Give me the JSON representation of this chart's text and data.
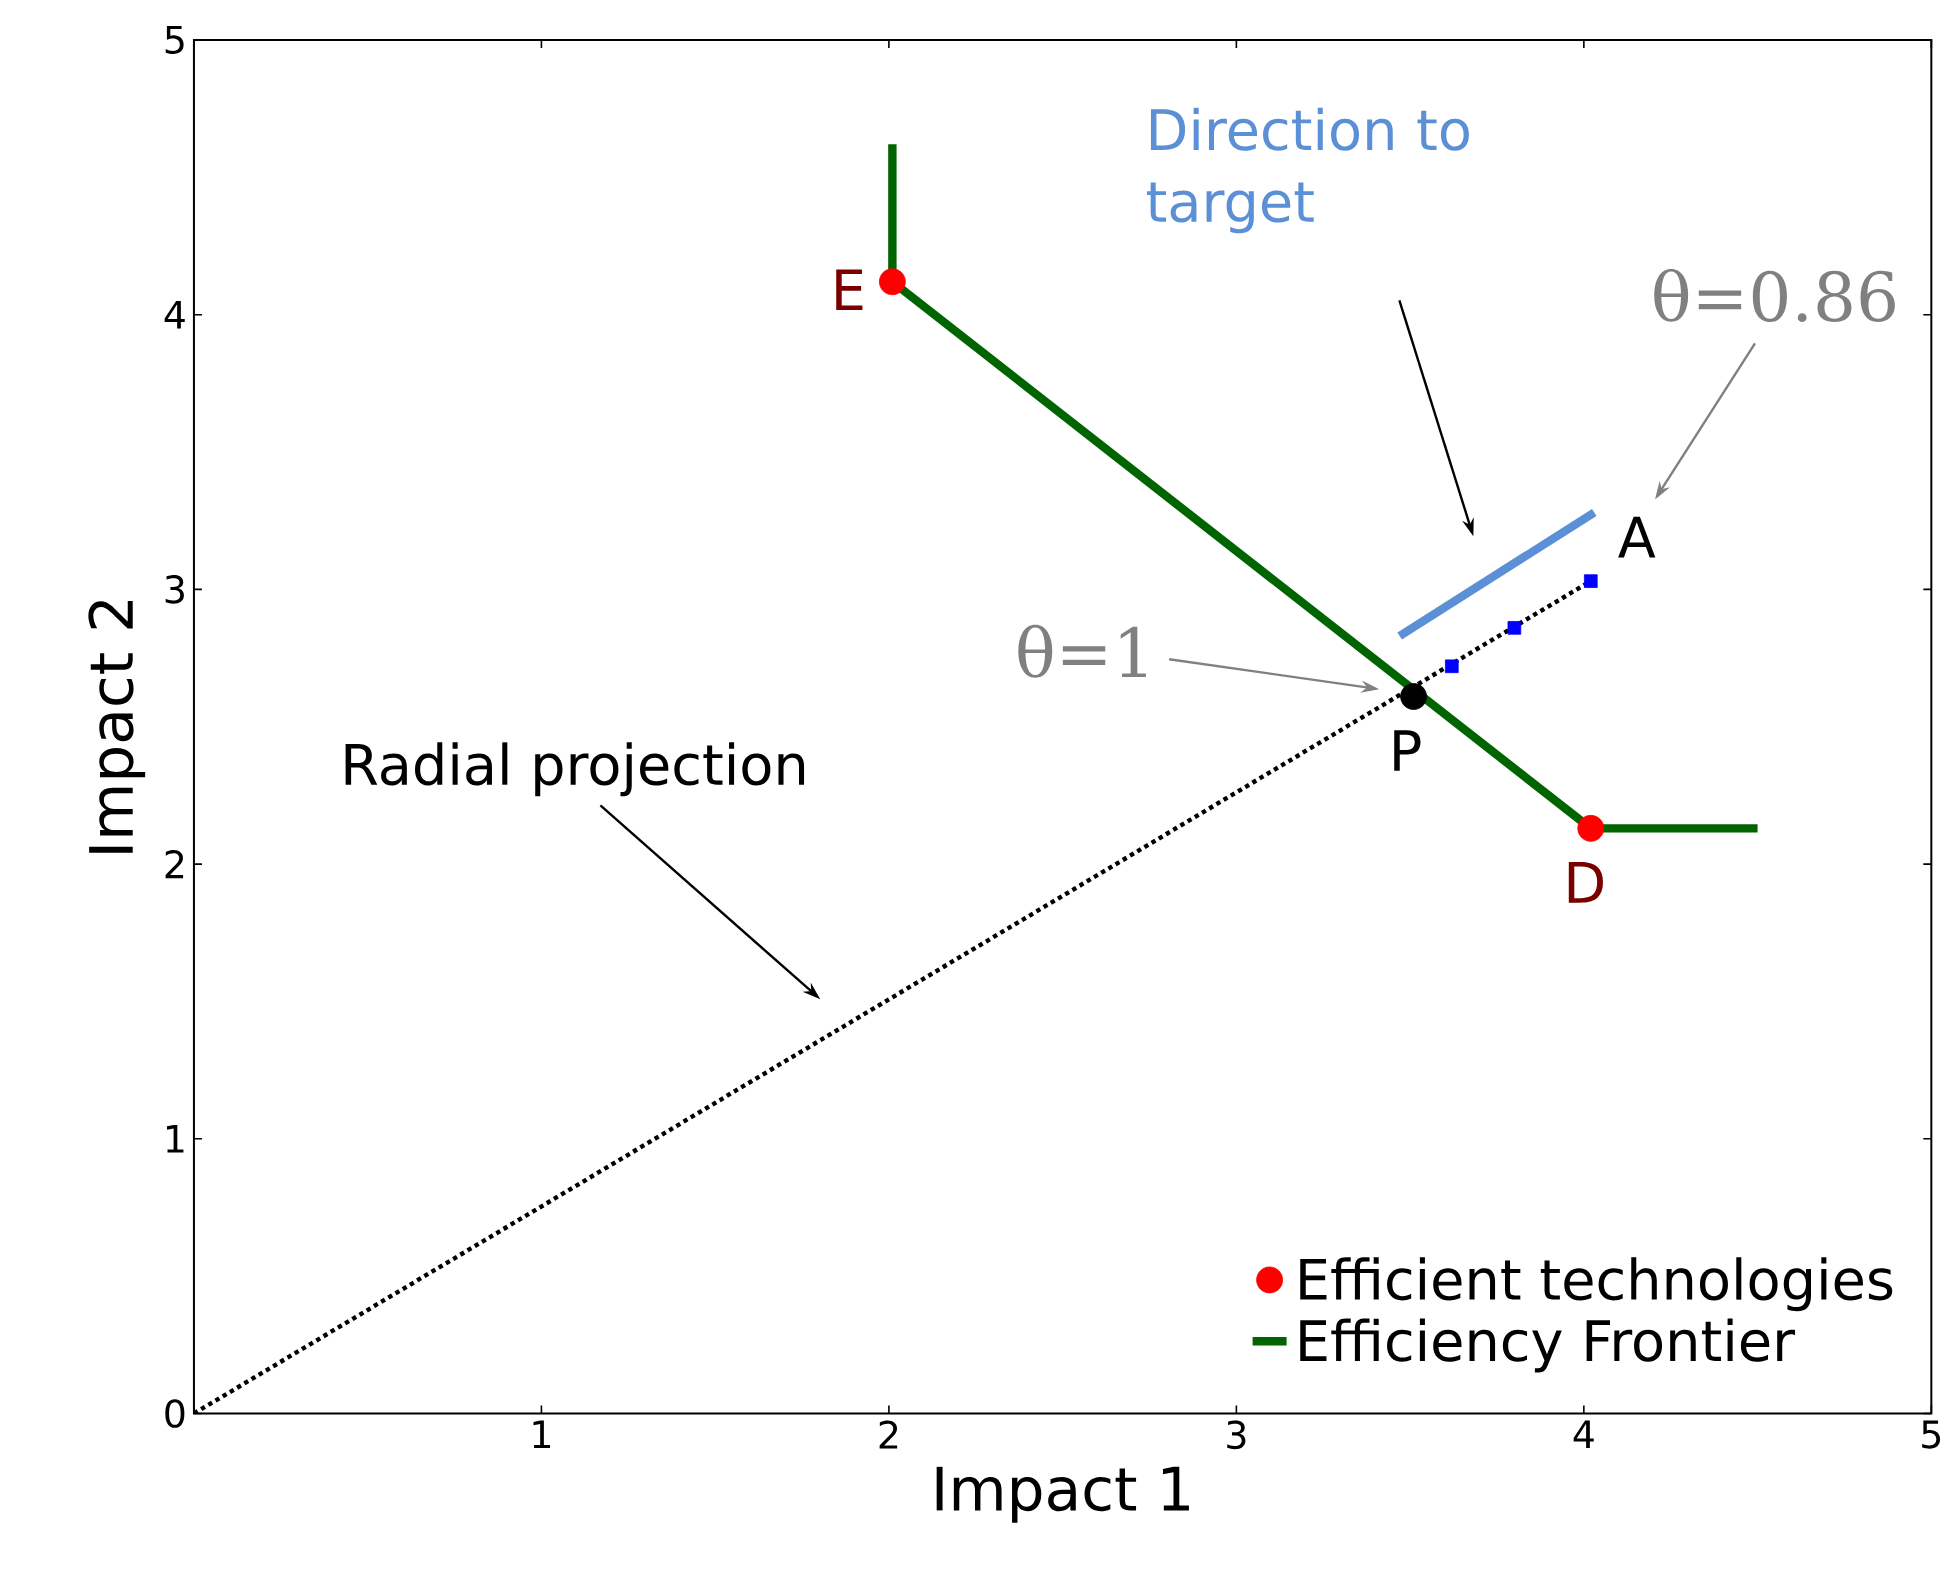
{
  "chart_data": {
    "type": "line",
    "xlabel": "Impact 1",
    "ylabel": "Impact 2",
    "xlim": [
      0,
      5
    ],
    "ylim": [
      0,
      5
    ],
    "xticks": [
      {
        "value": 0,
        "label": null
      },
      1,
      2,
      3,
      4,
      5
    ],
    "yticks": [
      0,
      1,
      2,
      3,
      4,
      5
    ],
    "legend": "bottom right",
    "series": [
      {
        "type": "scatter",
        "name": "Efficient technologies",
        "color": "#ff0000",
        "marker": "circle",
        "x": [
          2.01,
          4.02
        ],
        "values": [
          4.12,
          2.13
        ]
      },
      {
        "name": "Efficiency Frontier",
        "color": "#006400",
        "marker": "none",
        "line_style": "solid",
        "x": [
          2.01,
          2.01,
          4.02,
          4.5
        ],
        "values": [
          4.62,
          4.12,
          2.13,
          2.13
        ]
      },
      {
        "color": "#000000",
        "marker": "none",
        "line_style": "dotted",
        "x": [
          0,
          4.02
        ],
        "values": [
          0,
          3.03
        ]
      },
      {
        "type": "scatter",
        "color": "#0000ff",
        "marker": "square",
        "x": [
          3.62,
          3.8,
          4.02
        ],
        "values": [
          2.72,
          2.86,
          3.03
        ]
      },
      {
        "color": "#5b8fd6",
        "marker": "none",
        "line_style": "solid",
        "x": [
          4.03,
          3.47
        ],
        "values": [
          3.28,
          2.83
        ]
      },
      {
        "type": "scatter",
        "color": "#000000",
        "marker": "circle",
        "x": [
          3.51
        ],
        "values": [
          2.61
        ]
      }
    ],
    "annotations": [
      "Direction to target",
      "θ=0.86",
      "θ=1",
      "Radial projection",
      {
        "text": "A",
        "x": 4.02,
        "y": 3.03
      },
      {
        "text": "P",
        "x": 3.51,
        "y": 2.61
      },
      {
        "text": "D",
        "x": 4.02,
        "y": 2.13
      },
      {
        "text": "E",
        "x": 2.01,
        "y": 4.12
      }
    ]
  }
}
